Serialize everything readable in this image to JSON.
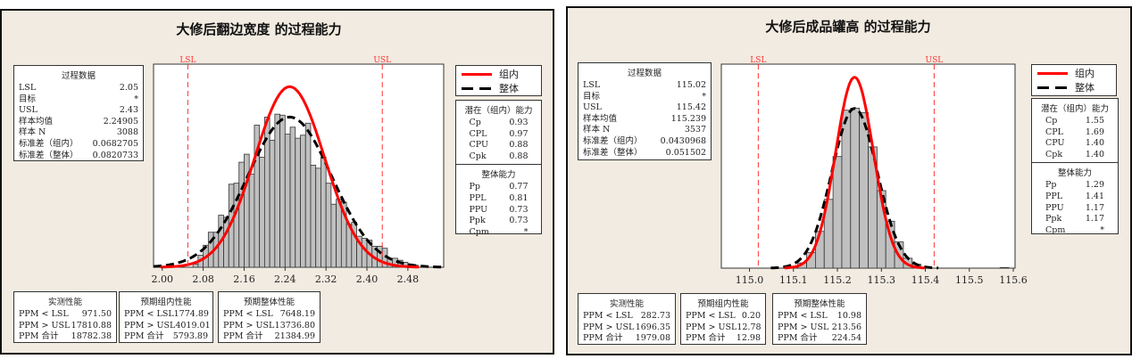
{
  "colors": {
    "within": "#ff0000",
    "overall": "#000000",
    "bar_fill": "#c0c0c0",
    "spec_line": "#ff3333",
    "panel_bg": "#f2ebe1"
  },
  "panels": [
    {
      "title": "大修后翻边宽度 的过程能力",
      "process_data": {
        "header": "过程数据",
        "rows": [
          {
            "k": "LSL",
            "v": "2.05"
          },
          {
            "k": "目标",
            "v": "*"
          },
          {
            "k": "USL",
            "v": "2.43"
          },
          {
            "k": "样本均值",
            "v": "2.24905"
          },
          {
            "k": "样本 N",
            "v": "3088"
          },
          {
            "k": "标准差（组内）",
            "v": "0.0682705"
          },
          {
            "k": "标准差（整体）",
            "v": "0.0820733"
          }
        ]
      },
      "legend": [
        {
          "label": "组内",
          "style": "solid-red"
        },
        {
          "label": "整体",
          "style": "dashed-black"
        }
      ],
      "potential": {
        "header": "潜在（组内）能力",
        "rows": [
          {
            "k": "Cp",
            "v": "0.93"
          },
          {
            "k": "CPL",
            "v": "0.97"
          },
          {
            "k": "CPU",
            "v": "0.88"
          },
          {
            "k": "Cpk",
            "v": "0.88"
          }
        ]
      },
      "overall": {
        "header": "整体能力",
        "rows": [
          {
            "k": "Pp",
            "v": "0.77"
          },
          {
            "k": "PPL",
            "v": "0.81"
          },
          {
            "k": "PPU",
            "v": "0.73"
          },
          {
            "k": "Ppk",
            "v": "0.73"
          },
          {
            "k": "Cpm",
            "v": "*"
          }
        ]
      },
      "ppm": [
        {
          "header": "实测性能",
          "rows": [
            {
              "k": "PPM < LSL",
              "v": "971.50"
            },
            {
              "k": "PPM > USL",
              "v": "17810.88"
            },
            {
              "k": "PPM 合计",
              "v": "18782.38"
            }
          ]
        },
        {
          "header": "预期组内性能",
          "rows": [
            {
              "k": "PPM < LSL",
              "v": "1774.89"
            },
            {
              "k": "PPM > USL",
              "v": "4019.01"
            },
            {
              "k": "PPM 合计",
              "v": "5793.89"
            }
          ]
        },
        {
          "header": "预期整体性能",
          "rows": [
            {
              "k": "PPM < LSL",
              "v": "7648.19"
            },
            {
              "k": "PPM > USL",
              "v": "13736.80"
            },
            {
              "k": "PPM 合计",
              "v": "21384.99"
            }
          ]
        }
      ]
    },
    {
      "title": "大修后成品罐高 的过程能力",
      "process_data": {
        "header": "过程数据",
        "rows": [
          {
            "k": "LSL",
            "v": "115.02"
          },
          {
            "k": "目标",
            "v": "*"
          },
          {
            "k": "USL",
            "v": "115.42"
          },
          {
            "k": "样本均值",
            "v": "115.239"
          },
          {
            "k": "样本 N",
            "v": "3537"
          },
          {
            "k": "标准差（组内）",
            "v": "0.0430968"
          },
          {
            "k": "标准差（整体）",
            "v": "0.051502"
          }
        ]
      },
      "legend": [
        {
          "label": "组内",
          "style": "solid-red"
        },
        {
          "label": "整体",
          "style": "dashed-black"
        }
      ],
      "potential": {
        "header": "潜在（组内）能力",
        "rows": [
          {
            "k": "Cp",
            "v": "1.55"
          },
          {
            "k": "CPL",
            "v": "1.69"
          },
          {
            "k": "CPU",
            "v": "1.40"
          },
          {
            "k": "Cpk",
            "v": "1.40"
          }
        ]
      },
      "overall": {
        "header": "整体能力",
        "rows": [
          {
            "k": "Pp",
            "v": "1.29"
          },
          {
            "k": "PPL",
            "v": "1.41"
          },
          {
            "k": "PPU",
            "v": "1.17"
          },
          {
            "k": "Ppk",
            "v": "1.17"
          },
          {
            "k": "Cpm",
            "v": "*"
          }
        ]
      },
      "ppm": [
        {
          "header": "实测性能",
          "rows": [
            {
              "k": "PPM < LSL",
              "v": "282.73"
            },
            {
              "k": "PPM > USL",
              "v": "1696.35"
            },
            {
              "k": "PPM 合计",
              "v": "1979.08"
            }
          ]
        },
        {
          "header": "预期组内性能",
          "rows": [
            {
              "k": "PPM < LSL",
              "v": "0.20"
            },
            {
              "k": "PPM > USL",
              "v": "12.78"
            },
            {
              "k": "PPM 合计",
              "v": "12.98"
            }
          ]
        },
        {
          "header": "预期整体性能",
          "rows": [
            {
              "k": "PPM < LSL",
              "v": "10.98"
            },
            {
              "k": "PPM > USL",
              "v": "213.56"
            },
            {
              "k": "PPM 合计",
              "v": "224.54"
            }
          ]
        }
      ]
    }
  ],
  "chart_data": [
    {
      "type": "bar",
      "title": "大修后翻边宽度 的过程能力",
      "bin_start": 2.06,
      "bin_width": 0.01,
      "counts": [
        3,
        12,
        22,
        35,
        35,
        52,
        50,
        83,
        84,
        105,
        113,
        93,
        142,
        110,
        150,
        127,
        153,
        152,
        133,
        140,
        129,
        132,
        144,
        102,
        99,
        110,
        84,
        63,
        68,
        65,
        43,
        45,
        31,
        29,
        27,
        21,
        21,
        19,
        9,
        9,
        7,
        5,
        3,
        2
      ],
      "xlim": [
        1.983,
        2.55
      ],
      "ylim": [
        0,
        203
      ],
      "xticks": [
        "2.00",
        "2.08",
        "2.16",
        "2.24",
        "2.32",
        "2.40",
        "2.48"
      ],
      "spec_lines": [
        {
          "label": "LSL",
          "value": 2.05
        },
        {
          "label": "USL",
          "value": 2.43
        }
      ],
      "mean": 2.24905,
      "sd_within": 0.0682705,
      "sd_overall": 0.0820733,
      "n": 3088,
      "series": [
        {
          "name": "组内",
          "kind": "normal-curve"
        },
        {
          "name": "整体",
          "kind": "normal-curve"
        }
      ],
      "legend": "right"
    },
    {
      "type": "bar",
      "title": "大修后成品罐高 的过程能力",
      "bin_start": 115.11,
      "bin_width": 0.02,
      "counts": [
        18,
        54,
        126,
        236,
        383,
        542,
        549,
        534,
        416,
        266,
        161,
        90,
        34,
        13,
        0,
        0,
        0,
        0,
        0,
        0,
        0,
        0,
        0,
        2
      ],
      "xlim": [
        114.936,
        115.604
      ],
      "ylim": [
        0,
        700
      ],
      "xticks": [
        "115.0",
        "115.1",
        "115.2",
        "115.3",
        "115.4",
        "115.5",
        "115.6"
      ],
      "spec_lines": [
        {
          "label": "LSL",
          "value": 115.02
        },
        {
          "label": "USL",
          "value": 115.42
        }
      ],
      "mean": 115.239,
      "sd_within": 0.0430968,
      "sd_overall": 0.051502,
      "n": 3537,
      "series": [
        {
          "name": "组内",
          "kind": "normal-curve"
        },
        {
          "name": "整体",
          "kind": "normal-curve"
        }
      ],
      "legend": "right"
    }
  ]
}
